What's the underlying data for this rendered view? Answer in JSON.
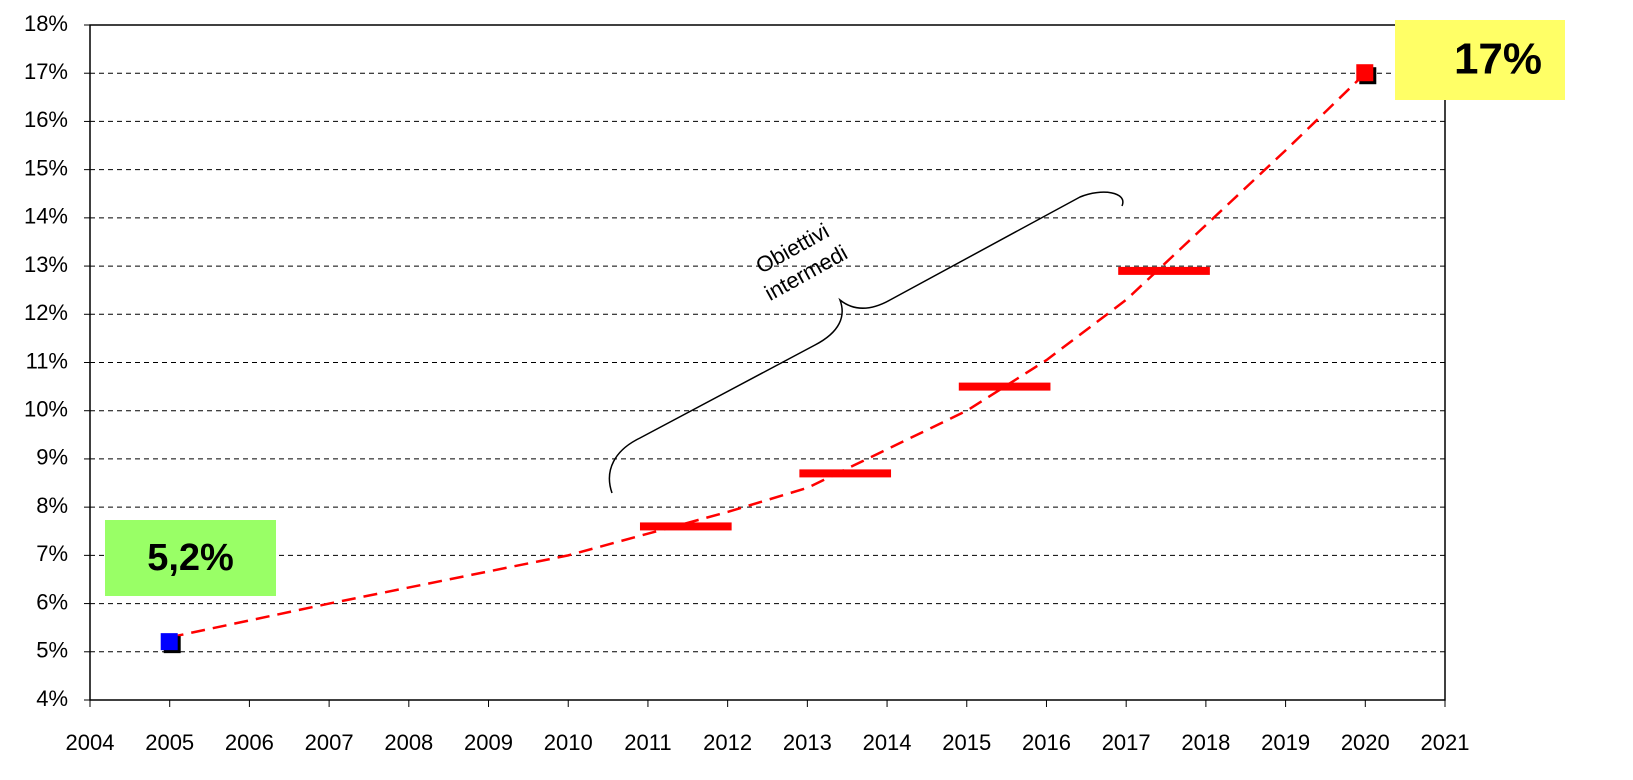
{
  "chart_data": {
    "type": "line",
    "xlim": [
      2004,
      2021
    ],
    "xticks": [
      2004,
      2005,
      2006,
      2007,
      2008,
      2009,
      2010,
      2011,
      2012,
      2013,
      2014,
      2015,
      2016,
      2017,
      2018,
      2019,
      2020,
      2021
    ],
    "ylim": [
      4,
      18
    ],
    "yticks": [
      {
        "value": 4,
        "label": "4%"
      },
      {
        "value": 5,
        "label": "5%"
      },
      {
        "value": 6,
        "label": "6%"
      },
      {
        "value": 7,
        "label": "7%"
      },
      {
        "value": 8,
        "label": "8%"
      },
      {
        "value": 9,
        "label": "9%"
      },
      {
        "value": 10,
        "label": "10%"
      },
      {
        "value": 11,
        "label": "11%"
      },
      {
        "value": 12,
        "label": "12%"
      },
      {
        "value": 13,
        "label": "13%"
      },
      {
        "value": 14,
        "label": "14%"
      },
      {
        "value": 15,
        "label": "15%"
      },
      {
        "value": 16,
        "label": "16%"
      },
      {
        "value": 17,
        "label": "17%"
      },
      {
        "value": 18,
        "label": "18%"
      }
    ],
    "grid": true,
    "trend": {
      "color": "#ff0000",
      "x": [
        2005,
        2007,
        2010,
        2012,
        2013,
        2015,
        2016,
        2017,
        2018,
        2019,
        2020
      ],
      "values": [
        5.3,
        6.0,
        7.0,
        7.9,
        8.4,
        10.0,
        11.05,
        12.3,
        13.85,
        15.4,
        17.0
      ]
    },
    "points": {
      "x": [
        2005,
        2020
      ],
      "values": [
        5.2,
        17
      ],
      "value_labels": [
        "5,2%",
        "17%"
      ],
      "colors": [
        "#0000ff",
        "#ff0000"
      ],
      "label_colors": [
        "#000000",
        "#ff0000"
      ],
      "label_backgrounds": [
        "#99ff66",
        "#ffff66"
      ]
    },
    "targets": {
      "color": "#ff0000",
      "x_start": [
        2010.9,
        2012.9,
        2014.9,
        2016.9
      ],
      "x_end": [
        2012.05,
        2014.05,
        2016.05,
        2018.05
      ],
      "values": [
        7.6,
        8.7,
        10.5,
        12.9
      ]
    },
    "annotation": [
      "Obiettivi",
      "intermedi"
    ]
  }
}
